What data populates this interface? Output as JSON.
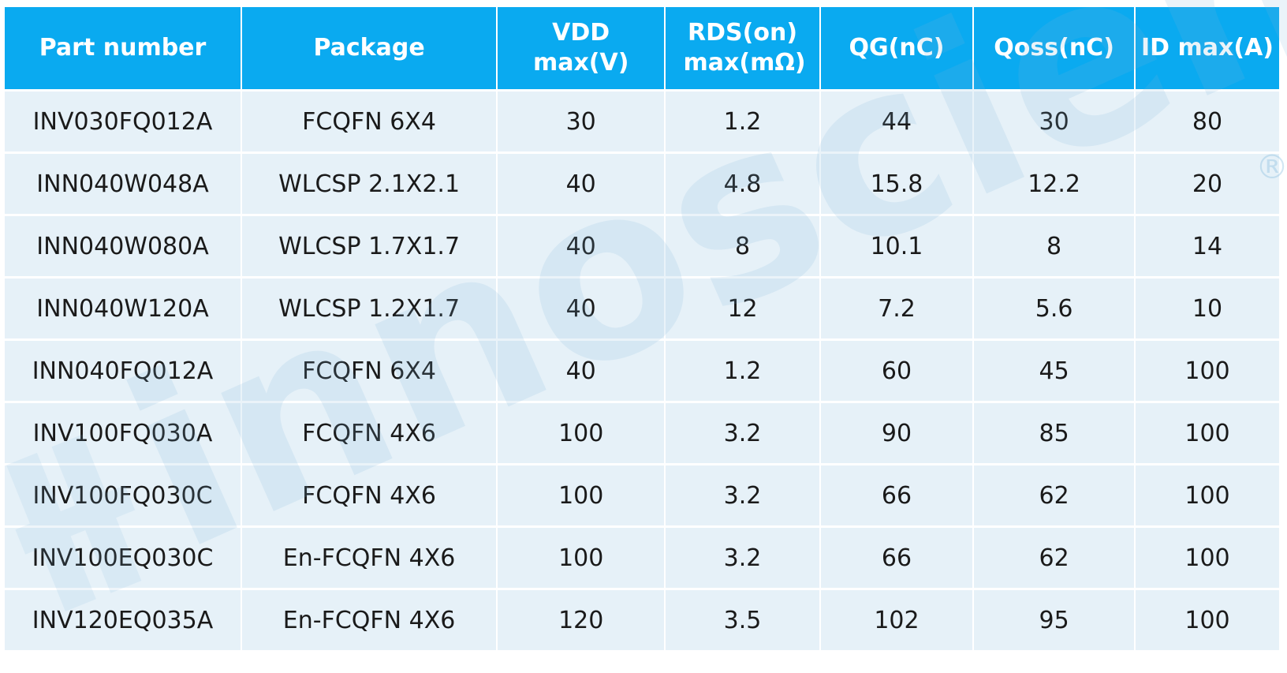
{
  "table": {
    "columns": [
      "Part number",
      "Package",
      "VDD max(V)",
      "RDS(on) max(mΩ)",
      "QG(nC)",
      "Qoss(nC)",
      "ID max(A)"
    ],
    "rows": [
      [
        "INV030FQ012A",
        "FCQFN 6X4",
        "30",
        "1.2",
        "44",
        "30",
        "80"
      ],
      [
        "INN040W048A",
        "WLCSP 2.1X2.1",
        "40",
        "4.8",
        "15.8",
        "12.2",
        "20"
      ],
      [
        "INN040W080A",
        "WLCSP 1.7X1.7",
        "40",
        "8",
        "10.1",
        "8",
        "14"
      ],
      [
        "INN040W120A",
        "WLCSP 1.2X1.7",
        "40",
        "12",
        "7.2",
        "5.6",
        "10"
      ],
      [
        "INN040FQ012A",
        "FCQFN 6X4",
        "40",
        "1.2",
        "60",
        "45",
        "100"
      ],
      [
        "INV100FQ030A",
        "FCQFN 4X6",
        "100",
        "3.2",
        "90",
        "85",
        "100"
      ],
      [
        "INV100FQ030C",
        "FCQFN 4X6",
        "100",
        "3.2",
        "66",
        "62",
        "100"
      ],
      [
        "INV100EQ030C",
        "En-FCQFN 4X6",
        "100",
        "3.2",
        "66",
        "62",
        "100"
      ],
      [
        "INV120EQ035A",
        "En-FCQFN 4X6",
        "120",
        "3.5",
        "102",
        "95",
        "100"
      ]
    ]
  },
  "watermark": {
    "text": "innoscience",
    "mark": "®",
    "color": "#7fb6dc"
  },
  "colors": {
    "header_bg": "#0aaaf0",
    "header_text": "#ffffff",
    "row_bg": "#e6f1f8",
    "cell_text": "#1a1a1a"
  }
}
